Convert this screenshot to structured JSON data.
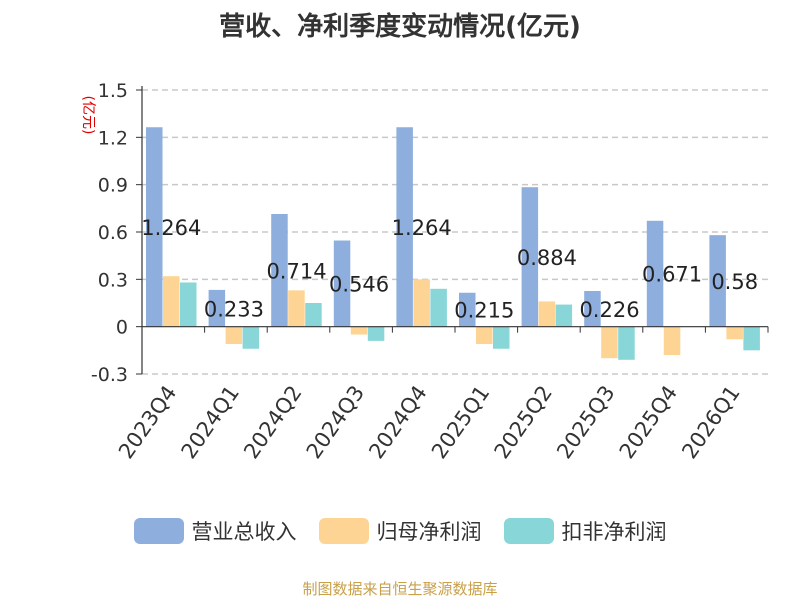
{
  "chart_data": {
    "type": "bar",
    "title": "营收、净利季度变动情况(亿元)",
    "ylabel": "(亿元)",
    "xlabel": "",
    "ylim": [
      -0.3,
      1.5
    ],
    "yticks": [
      1.5,
      1.2,
      0.9,
      0.6,
      0.3,
      0,
      -0.3
    ],
    "ytick_labels": [
      "1.5",
      "1.2",
      "0.9",
      "0.6",
      "0.3",
      "0",
      "-0.3"
    ],
    "grid": true,
    "legend_position": "bottom",
    "categories": [
      "2023Q4",
      "2024Q1",
      "2024Q2",
      "2024Q3",
      "2024Q4",
      "2025Q1",
      "2025Q2",
      "2025Q3",
      "2025Q4",
      "2026Q1"
    ],
    "series": [
      {
        "name": "营业总收入",
        "color": "#8eaedd",
        "values": [
          1.264,
          0.233,
          0.714,
          0.546,
          1.264,
          0.215,
          0.884,
          0.226,
          0.671,
          0.58
        ],
        "labels": [
          "1.264",
          "0.233",
          "0.714",
          "0.546",
          "1.264",
          "0.215",
          "0.884",
          "0.226",
          "0.671",
          "0.58"
        ]
      },
      {
        "name": "归母净利润",
        "color": "#fdd494",
        "values": [
          0.32,
          -0.11,
          0.23,
          -0.05,
          0.3,
          -0.11,
          0.16,
          -0.2,
          -0.18,
          -0.08
        ]
      },
      {
        "name": "扣非净利润",
        "color": "#88d6d8",
        "values": [
          0.28,
          -0.14,
          0.15,
          -0.09,
          0.24,
          -0.14,
          0.14,
          -0.21,
          0,
          -0.15
        ]
      }
    ]
  },
  "source": "制图数据来自恒生聚源数据库"
}
